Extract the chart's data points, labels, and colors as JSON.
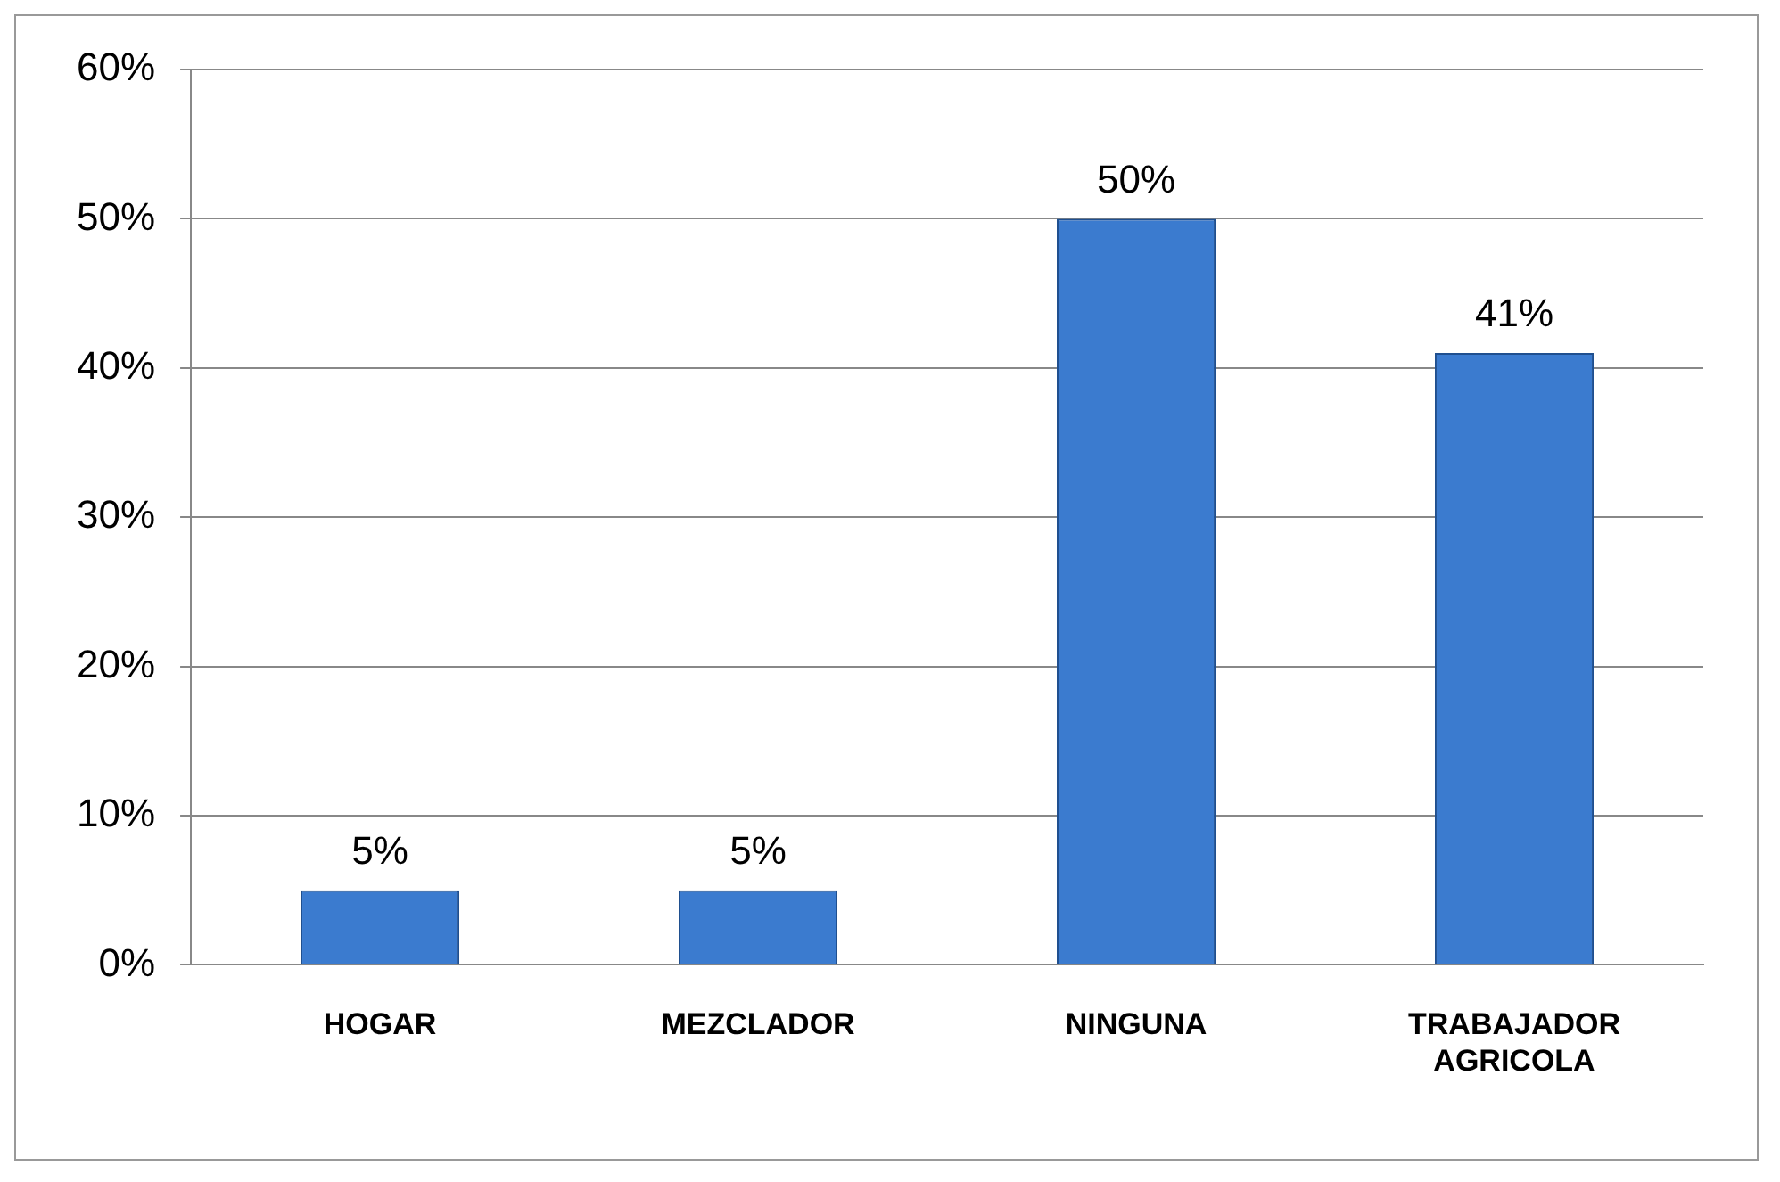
{
  "chart_data": {
    "type": "bar",
    "categories": [
      "HOGAR",
      "MEZCLADOR",
      "NINGUNA",
      "TRABAJADOR AGRICOLA"
    ],
    "values": [
      5,
      5,
      50,
      41
    ],
    "color": "#3b7bcf",
    "value_labels": [
      "5%",
      "5%",
      "50%",
      "41%"
    ],
    "ylim": [
      0,
      60
    ],
    "yticks": [
      {
        "value": 0,
        "label": "0%"
      },
      {
        "value": 10,
        "label": "10%"
      },
      {
        "value": 20,
        "label": "20%"
      },
      {
        "value": 30,
        "label": "30%"
      },
      {
        "value": 40,
        "label": "40%"
      },
      {
        "value": 50,
        "label": "50%"
      },
      {
        "value": 60,
        "label": "60%"
      }
    ],
    "grid": "y",
    "legend": false
  }
}
